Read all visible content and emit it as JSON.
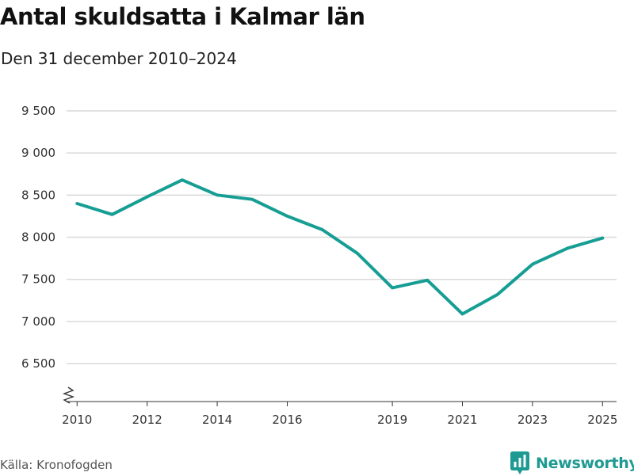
{
  "header": {
    "title": "Antal skuldsatta i Kalmar län",
    "subtitle": "Den 31 december 2010–2024"
  },
  "footer": {
    "source": "Källa: Kronofogden",
    "brand": "Newsworthy"
  },
  "colors": {
    "line": "#179e94",
    "brand": "#1d9a92"
  },
  "chart_data": {
    "type": "line",
    "title": "Antal skuldsatta i Kalmar län",
    "subtitle": "Den 31 december 2010–2024",
    "xlabel": "",
    "ylabel": "",
    "x": [
      2010,
      2011,
      2012,
      2013,
      2014,
      2015,
      2016,
      2017,
      2018,
      2019,
      2020,
      2021,
      2022,
      2023,
      2024,
      2025
    ],
    "series": [
      {
        "name": "Antal skuldsatta",
        "values": [
          8400,
          8270,
          8480,
          8680,
          8500,
          8450,
          8250,
          8090,
          7810,
          7400,
          7490,
          7090,
          7320,
          7680,
          7870,
          7990
        ]
      }
    ],
    "x_ticks": [
      2010,
      2012,
      2014,
      2016,
      2019,
      2021,
      2023,
      2025
    ],
    "x_tick_labels": [
      "2010",
      "2012",
      "2014",
      "2016",
      "2019",
      "2021",
      "2023",
      "2025"
    ],
    "y_ticks": [
      6500,
      7000,
      7500,
      8000,
      8500,
      9000,
      9500
    ],
    "y_tick_labels": [
      "6 500",
      "7 000",
      "7 500",
      "8 000",
      "8 500",
      "9 000",
      "9 500"
    ],
    "xlim": [
      2009.7,
      2025.4
    ],
    "ylim": [
      6050,
      9650
    ],
    "grid": true,
    "axis_break": true
  }
}
